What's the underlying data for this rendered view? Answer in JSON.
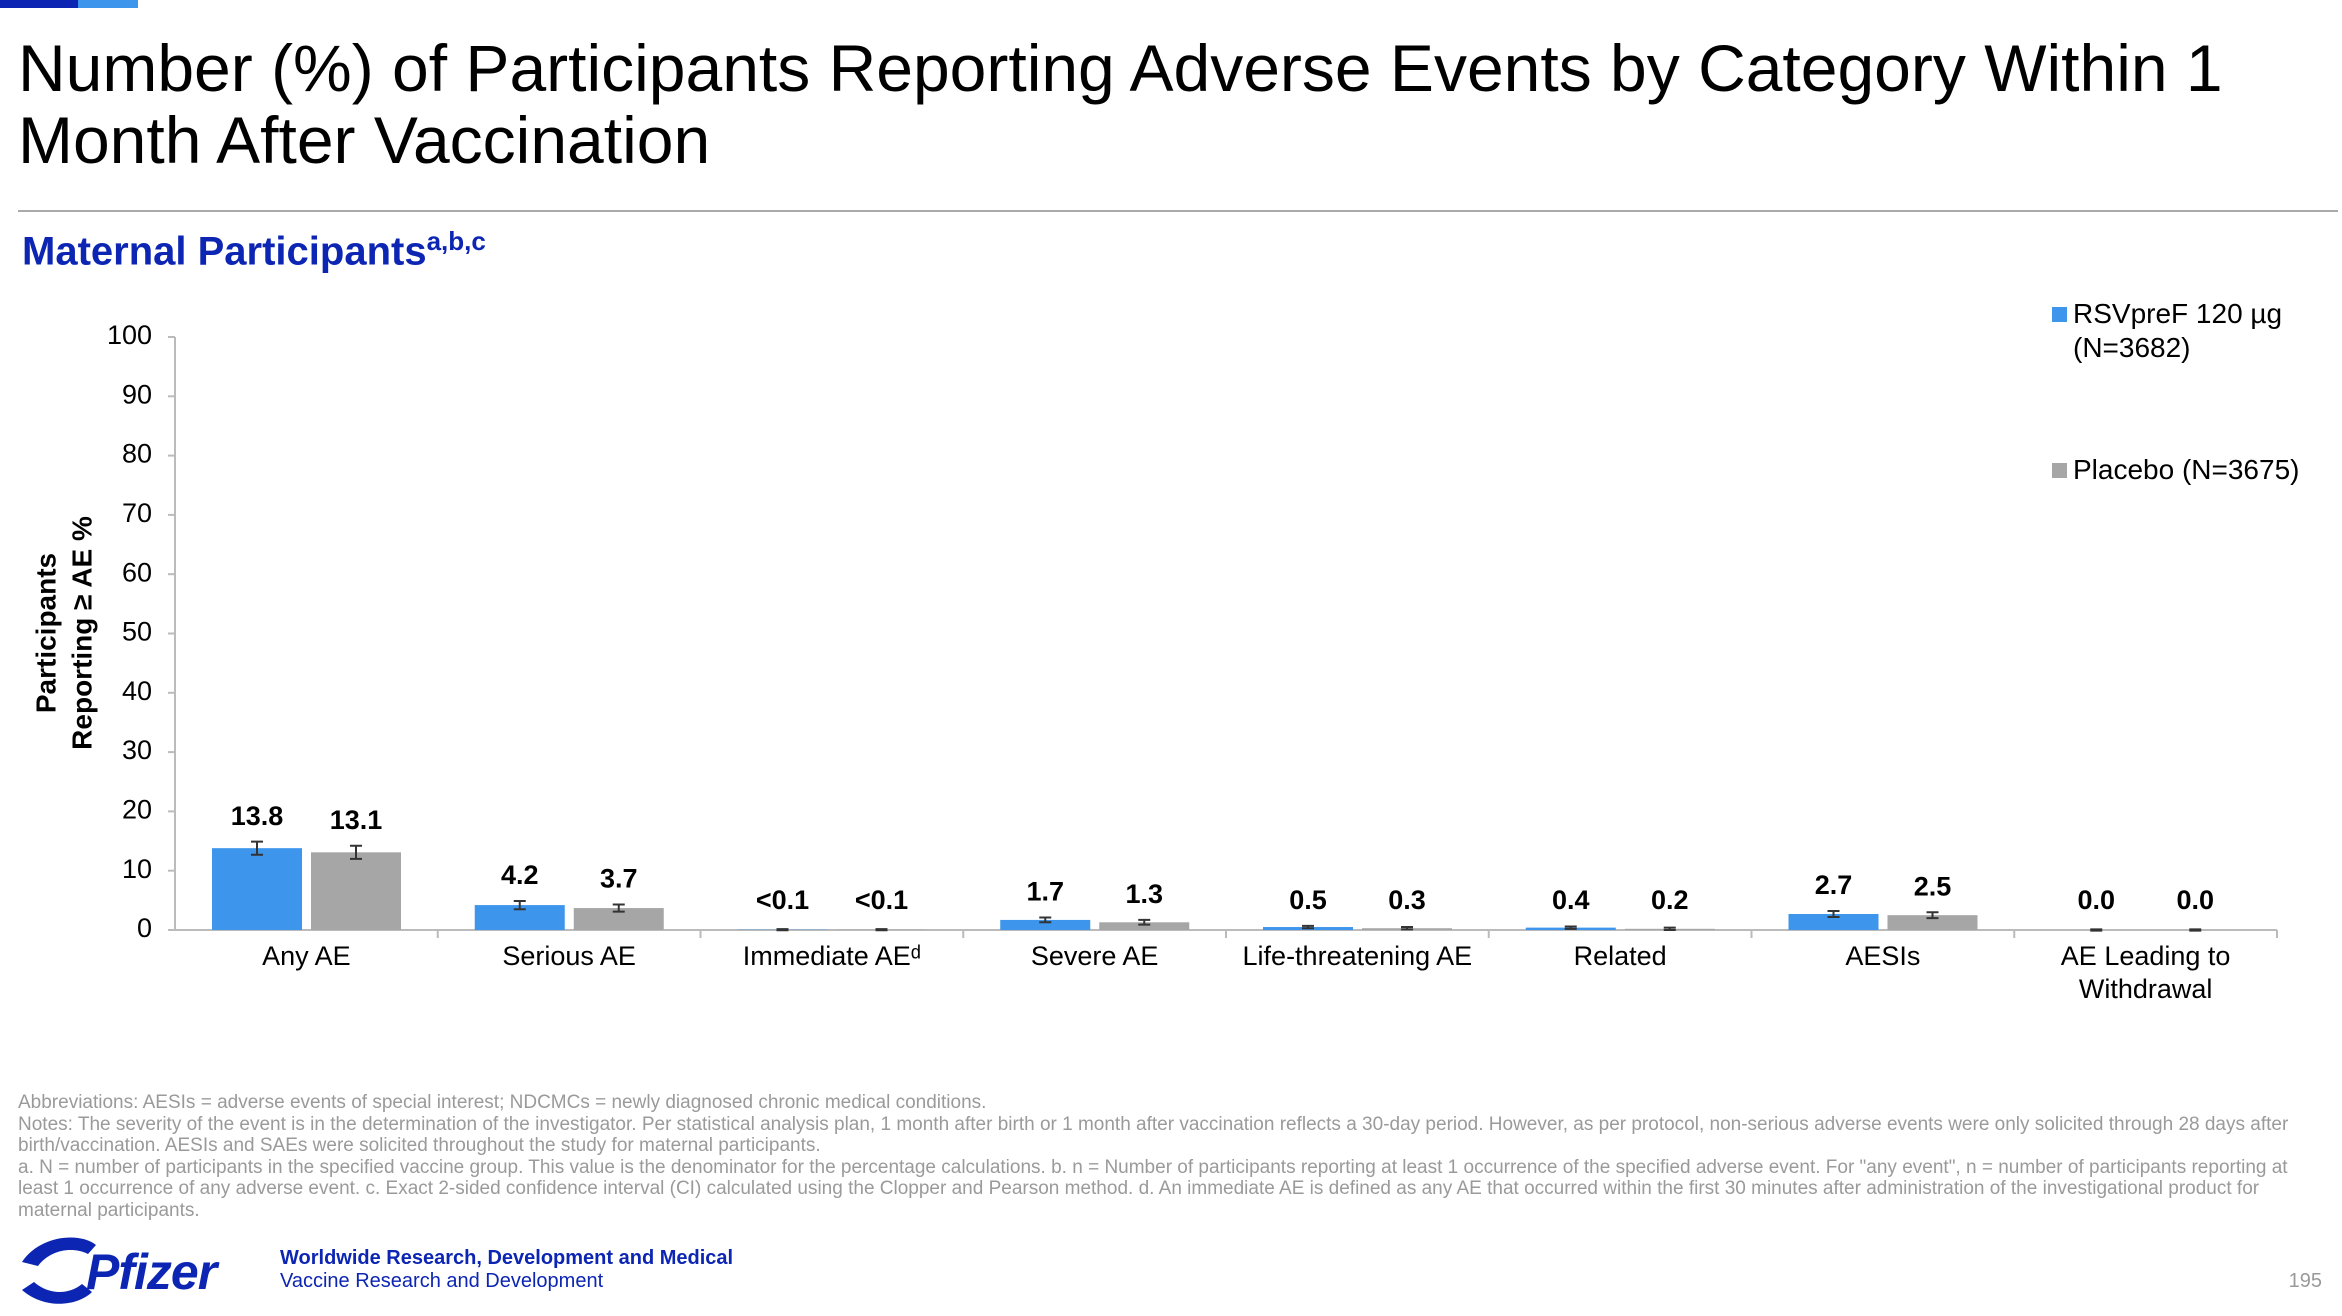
{
  "chart_data": {
    "type": "bar",
    "title": "Number (%) of Participants Reporting Adverse Events by Category Within 1 Month After Vaccination",
    "subtitle": "Maternal Participants",
    "subtitle_note": "a,b,c",
    "y_label": [
      "Participants",
      "Reporting ≥ AE %"
    ],
    "categories": [
      "Any AE",
      "Serious AE",
      "Immediate AEᵈ",
      "Severe AE",
      "Life-threatening AE",
      "Related",
      "AESIs",
      "AE Leading to Withdrawal"
    ],
    "series": [
      {
        "name": "RSVpreF 120 µg (N=3682)",
        "color": "#3d95ec",
        "values": [
          13.8,
          4.2,
          0.05,
          1.7,
          0.5,
          0.4,
          2.7,
          0
        ],
        "value_labels": [
          "13.8",
          "4.2",
          "<0.1",
          "1.7",
          "0.5",
          "0.4",
          "2.7",
          "0.0"
        ],
        "errors": [
          1.1,
          0.7,
          0.1,
          0.4,
          0.2,
          0.2,
          0.5,
          0.1
        ]
      },
      {
        "name": "Placebo (N=3675)",
        "color": "#a6a6a6",
        "values": [
          13.1,
          3.7,
          0.05,
          1.3,
          0.3,
          0.2,
          2.5,
          0
        ],
        "value_labels": [
          "13.1",
          "3.7",
          "<0.1",
          "1.3",
          "0.3",
          "0.2",
          "2.5",
          "0.0"
        ],
        "errors": [
          1.1,
          0.6,
          0.1,
          0.4,
          0.2,
          0.2,
          0.5,
          0.1
        ]
      }
    ],
    "ylim": [
      0,
      100
    ],
    "yticks": [
      0,
      10,
      20,
      30,
      40,
      50,
      60,
      70,
      80,
      90,
      100
    ],
    "grid": false,
    "legend": "right"
  },
  "footnotes": [
    "Abbreviations: AESIs = adverse events of special interest; NDCMCs = newly diagnosed chronic medical conditions.",
    "Notes: The severity of the event is in the determination of the investigator. Per statistical analysis plan, 1 month after birth or 1 month after vaccination reflects a 30-day period. However, as per protocol, non-serious adverse events were only solicited through 28 days after birth/vaccination. AESIs and SAEs were solicited throughout the study for maternal participants.",
    "a. N = number of participants in the specified vaccine group. This value is the denominator for the percentage calculations. b. n = Number of participants reporting at least 1 occurrence of the specified adverse event. For \"any event\", n = number of participants reporting at least 1 occurrence of any adverse event. c. Exact 2-sided confidence interval (CI) calculated using the Clopper and Pearson method. d. An immediate AE is defined as any AE that occurred within the first 30 minutes after administration of the investigational product for maternal participants."
  ],
  "footer": {
    "logo_text": "Pfizer",
    "line1": "Worldwide Research, Development and Medical",
    "line2": "Vaccine Research and Development",
    "page_number": "195"
  }
}
